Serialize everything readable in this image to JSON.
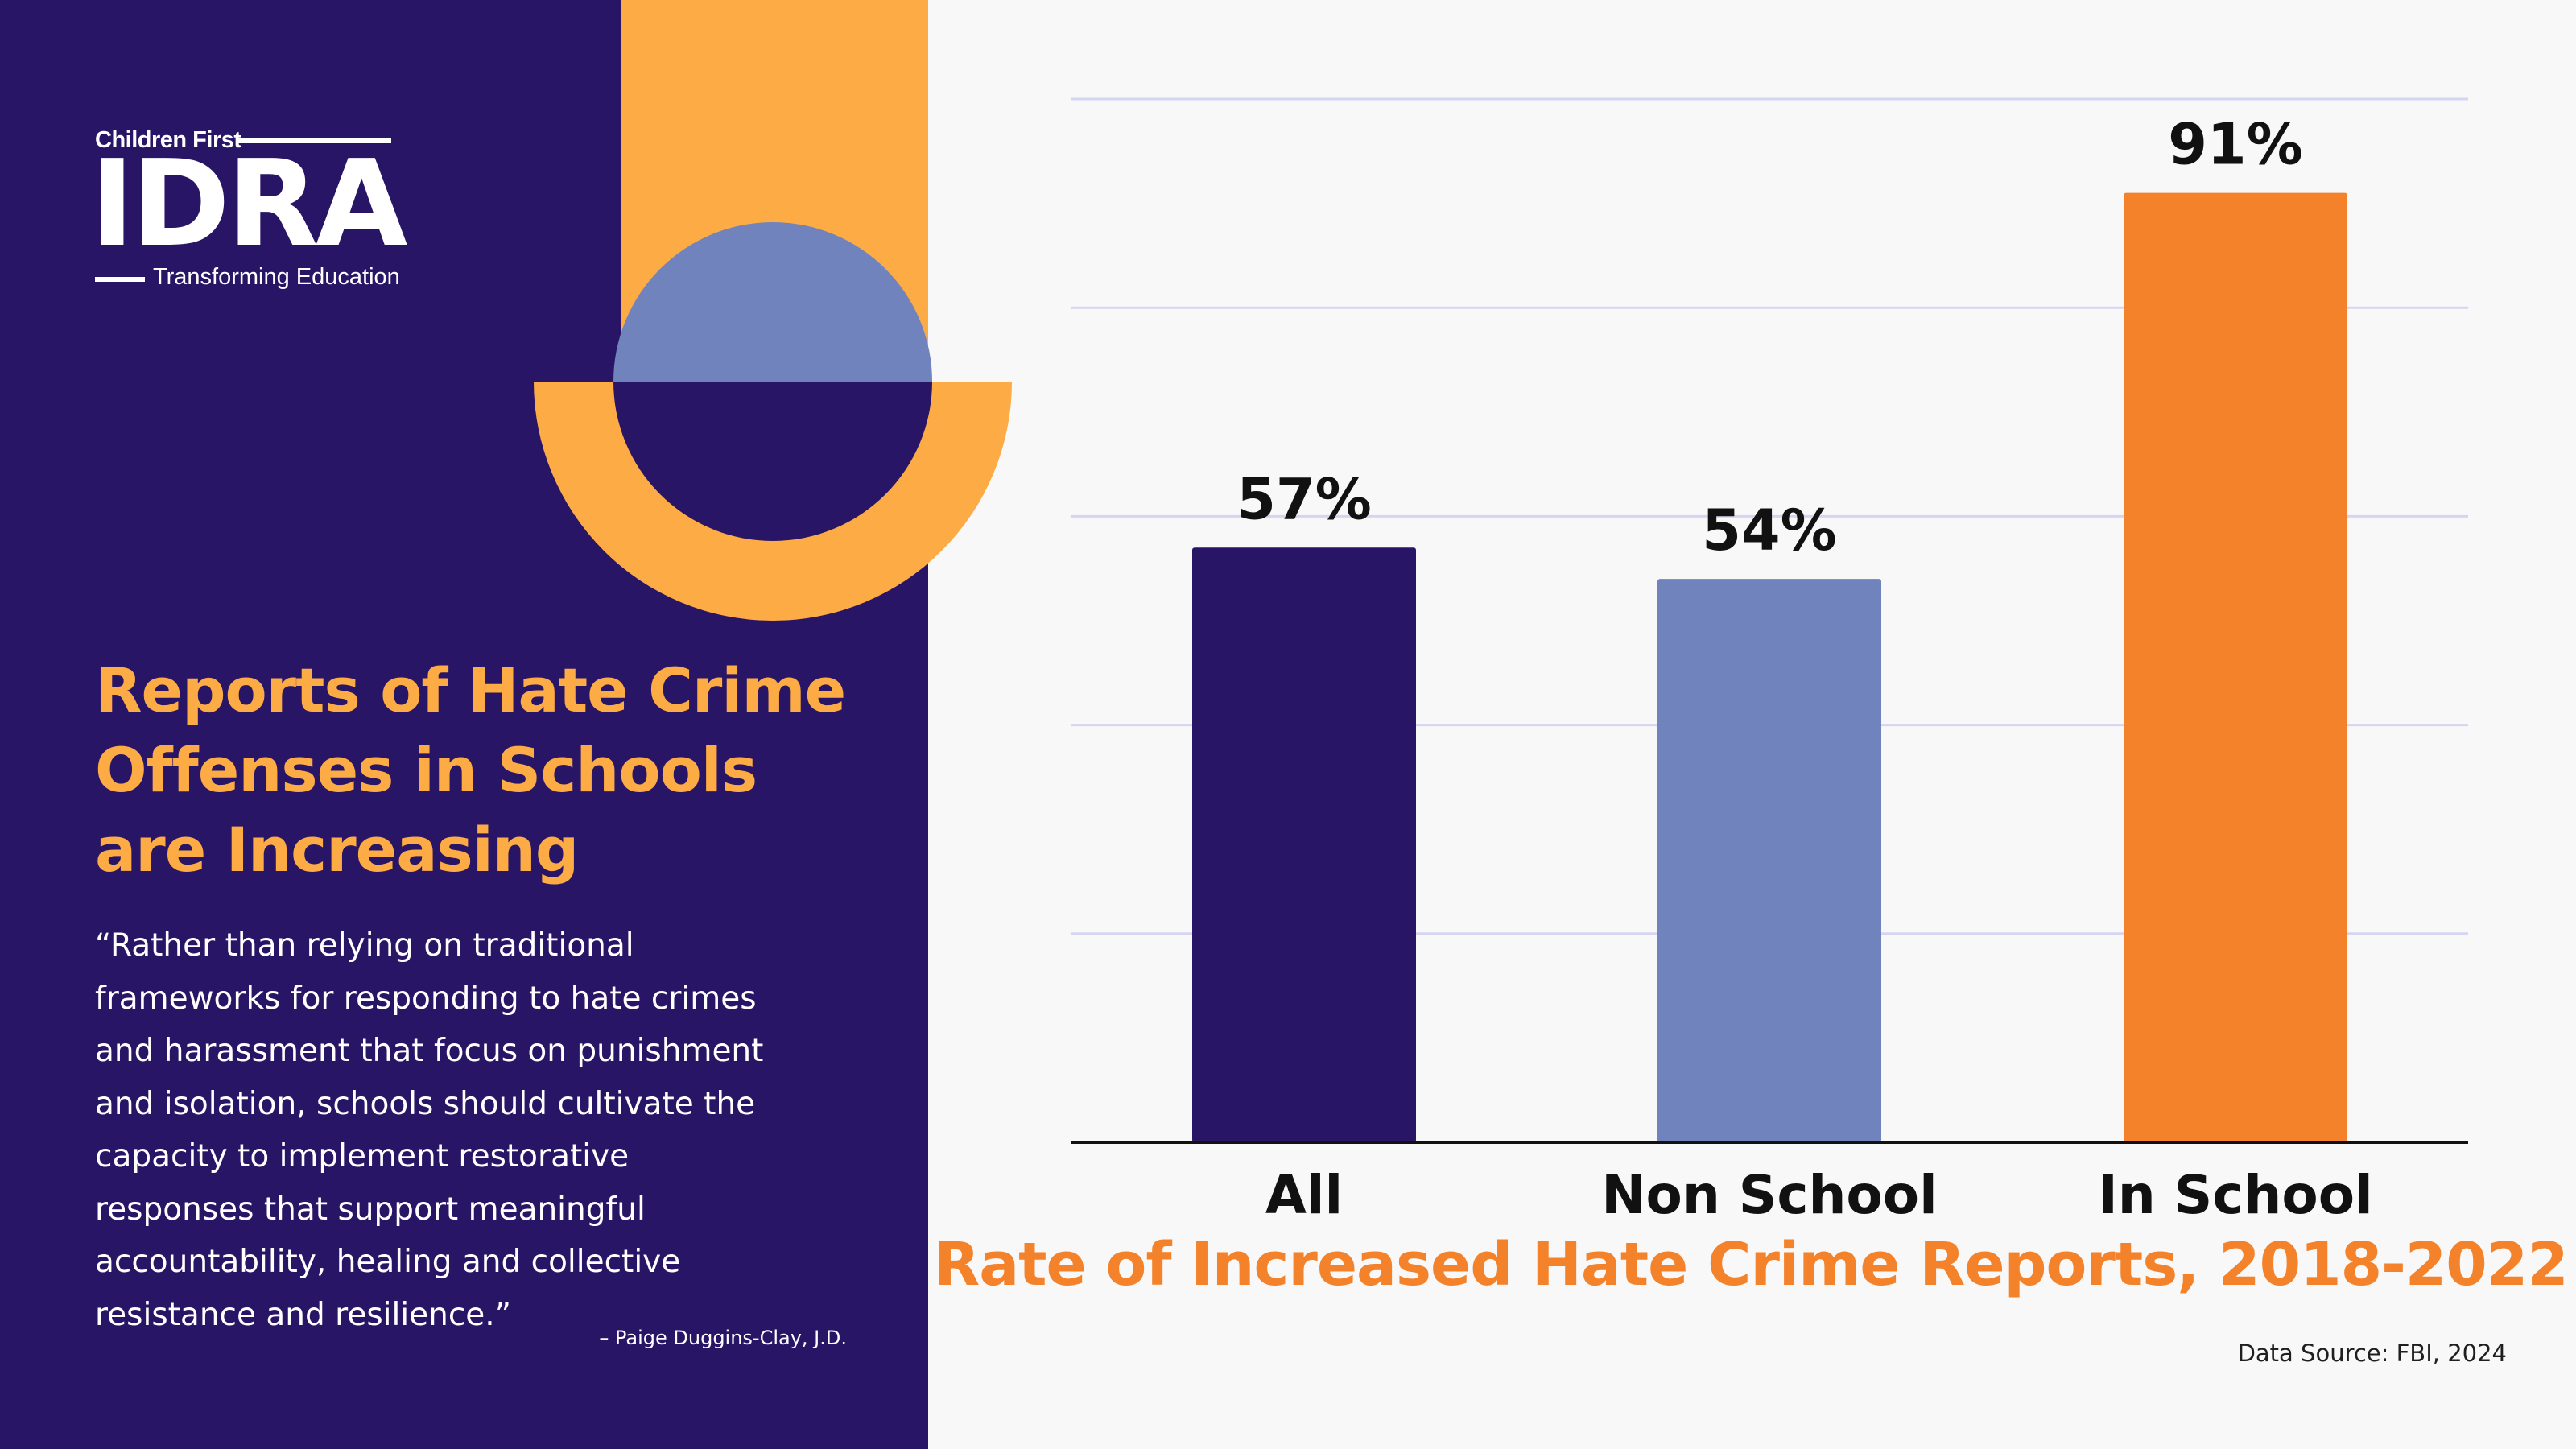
{
  "logo": {
    "top_text": "Children First",
    "main_text": "IDRA",
    "bottom_text": "Transforming Education"
  },
  "headline": "Reports of Hate Crime\nOffenses in Schools\nare Increasing",
  "quote": {
    "text": "“Rather than relying on traditional\nframeworks for responding to hate crimes\nand harassment that focus on punishment\nand isolation, schools should cultivate the\ncapacity to implement restorative\nresponses that support meaningful\naccountability, healing and collective\nresistance and resilience.”",
    "attribution": "– Paige Duggins-Clay, J.D."
  },
  "colors": {
    "navy": "#291566",
    "orange_light": "#fdab45",
    "periwinkle": "#7083bd",
    "orange": "#f4822a",
    "gridline": "#d5d5f2"
  },
  "chart_data": {
    "type": "bar",
    "title": "Rate of Increased Hate Crime Reports, 2018-2022",
    "categories": [
      "All",
      "Non School",
      "In School"
    ],
    "values": [
      57,
      54,
      91
    ],
    "value_labels": [
      "57%",
      "54%",
      "91%"
    ],
    "bar_colors": [
      "#291566",
      "#7083bd",
      "#f4822a"
    ],
    "ylim": [
      0,
      100
    ],
    "grid": true,
    "xlabel": "",
    "ylabel": ""
  },
  "source": "Data Source: FBI, 2024"
}
